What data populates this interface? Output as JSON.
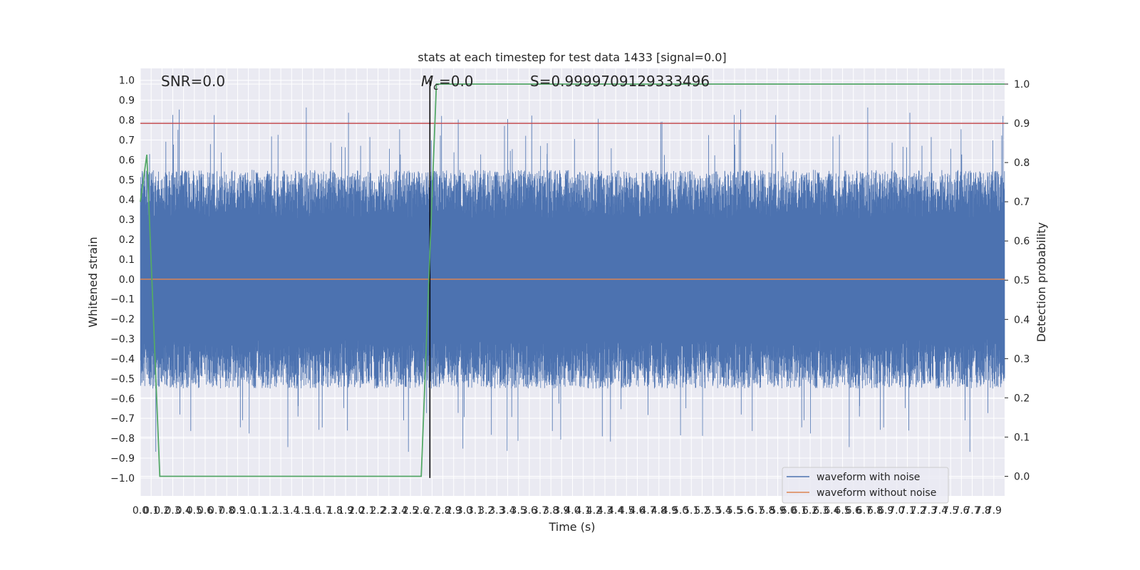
{
  "chart_data": {
    "type": "line",
    "title": "stats at each timestep for test data 1433 [signal=0.0]",
    "xlabel": "Time (s)",
    "ylabel_left": "Whitened strain",
    "ylabel_right": "Detection probability",
    "xlim": [
      0.0,
      8.0
    ],
    "ylim_left": [
      -1.09,
      1.06
    ],
    "ylim_right": [
      -0.05,
      1.04
    ],
    "x_tick_step": 0.1,
    "x_tick_max": 7.9,
    "left_ticks": [
      -1.0,
      -0.9,
      -0.8,
      -0.7,
      -0.6,
      -0.5,
      -0.4,
      -0.3,
      -0.2,
      -0.1,
      0.0,
      0.1,
      0.2,
      0.3,
      0.4,
      0.5,
      0.6,
      0.7,
      0.8,
      0.9,
      1.0
    ],
    "right_ticks": [
      0.0,
      0.1,
      0.2,
      0.3,
      0.4,
      0.5,
      0.6,
      0.7,
      0.8,
      0.9,
      1.0
    ],
    "grid": true,
    "legend_position": "lower-right",
    "annotations": {
      "snr": "SNR=0.0",
      "mc_symbol": "M",
      "mc_sub": "c",
      "mc_value": "=0.0",
      "s": "S=0.9999709129333496"
    },
    "vertical_line_x": 2.68,
    "threshold_line_prob": 0.9,
    "series": [
      {
        "name": "waveform with noise",
        "axis": "left",
        "color": "#4c72b0",
        "description_stats": {
          "typical_abs_peak": 0.55,
          "max": 0.97,
          "min": -1.0,
          "samples": 8000
        }
      },
      {
        "name": "waveform without noise",
        "axis": "left",
        "color": "#dd8452",
        "values_constant": 0.0
      },
      {
        "axis": "right",
        "color": "#55a868",
        "x": [
          0.0,
          0.06,
          0.18,
          2.6,
          2.74,
          8.0
        ],
        "y": [
          0.7,
          0.82,
          0.0,
          0.0,
          1.0,
          1.0
        ]
      }
    ],
    "colors": {
      "plot_bg": "#eaeaf2",
      "grid": "#ffffff",
      "threshold": "#c44e52",
      "vline": "#000000"
    }
  }
}
